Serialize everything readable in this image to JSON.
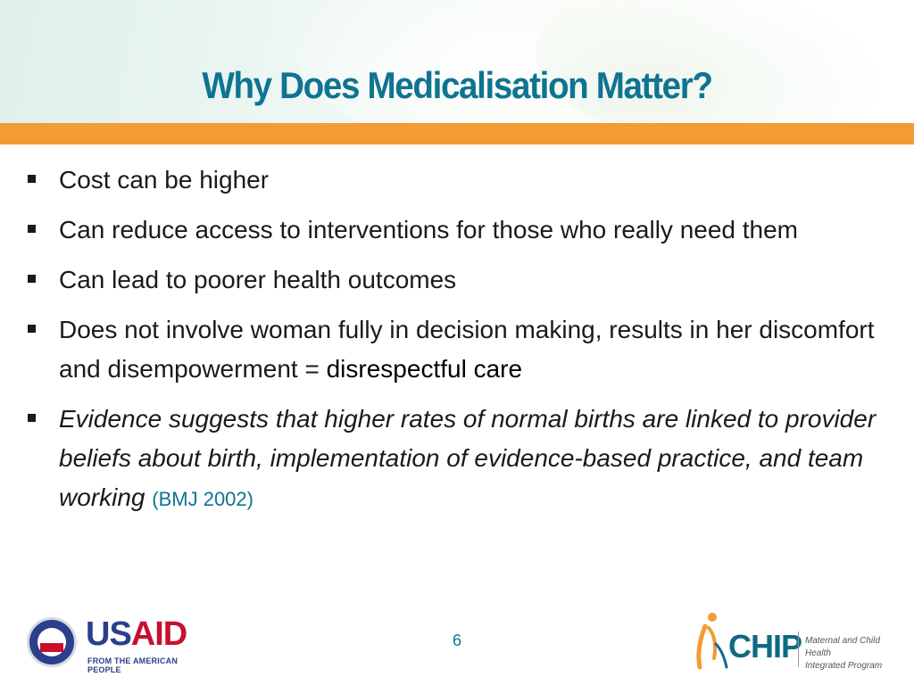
{
  "slide": {
    "title": "Why Does Medicalisation Matter?",
    "page_number": "6"
  },
  "bullets": [
    {
      "text": "Cost can be higher"
    },
    {
      "text": "Can reduce access to interventions for those who really need them"
    },
    {
      "text": "Can lead to poorer health outcomes"
    },
    {
      "text": "Does not involve woman fully in decision making, results in her discomfort and disempowerment = ",
      "emphasis": "disrespectful care"
    },
    {
      "text": "Evidence suggests that higher rates of normal births are linked to provider beliefs about birth, implementation of evidence-based practice, and team working",
      "citation": "(BMJ 2002)"
    }
  ],
  "logos": {
    "usaid": {
      "us": "US",
      "aid": "AID",
      "tagline": "FROM THE AMERICAN PEOPLE",
      "seal_text": "USAID"
    },
    "mchip": {
      "name": "CHIP",
      "line1": "Maternal and Child Health",
      "line2": "Integrated Program"
    }
  },
  "colors": {
    "title": "#0f7491",
    "accent_bar": "#f29c33",
    "usaid_blue": "#2b3f8a",
    "usaid_red": "#c8102e"
  }
}
